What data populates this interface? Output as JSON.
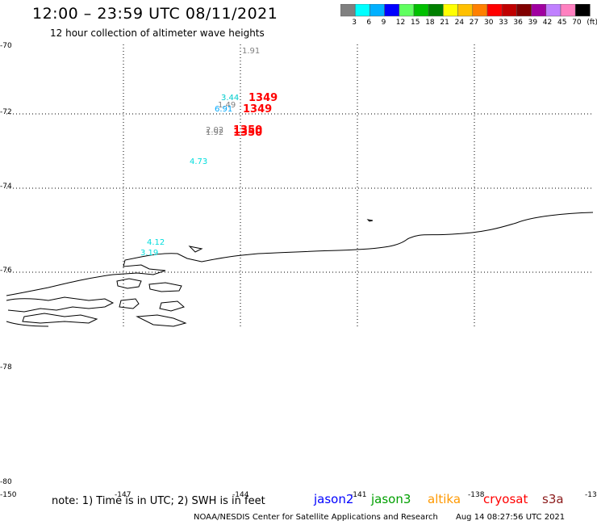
{
  "header": {
    "title": "12:00 – 23:59 UTC 08/11/2021",
    "subtitle": "12 hour collection of altimeter wave heights"
  },
  "colorbar": {
    "colors": [
      "#808080",
      "#00ffff",
      "#00b0ff",
      "#0000ff",
      "#60ff60",
      "#00c000",
      "#008000",
      "#ffff00",
      "#ffc000",
      "#ff8000",
      "#ff0000",
      "#c00000",
      "#800000",
      "#a000a0",
      "#c080ff",
      "#ff80c0",
      "#000000"
    ],
    "labels": [
      "3",
      "6",
      "9",
      "12",
      "15",
      "18",
      "21",
      "24",
      "27",
      "30",
      "33",
      "36",
      "39",
      "42",
      "45",
      "70",
      "(ft)"
    ]
  },
  "axes": {
    "lat_labels": [
      "-70",
      "-72",
      "-74",
      "-76",
      "-78",
      "-80"
    ],
    "lon_labels": [
      "-150",
      "-147",
      "-144",
      "-141",
      "-138",
      "-13"
    ]
  },
  "observations": [
    {
      "text": "1.91",
      "color": "#808080"
    },
    {
      "text": "3.44",
      "color": "#00cccc"
    },
    {
      "text": "1.49",
      "color": "#808080"
    },
    {
      "text": "6.91",
      "color": "#00aaff"
    },
    {
      "text": "2.02",
      "color": "#808080"
    },
    {
      "text": "1.92",
      "color": "#808080"
    },
    {
      "text": "4.73",
      "color": "#00dddd"
    },
    {
      "text": "4.12",
      "color": "#00dddd"
    },
    {
      "text": "3.19",
      "color": "#00dddd"
    }
  ],
  "orbits": [
    "1349",
    "1349",
    "1350",
    "1350"
  ],
  "footer": {
    "note": "note: 1) Time is in UTC; 2) SWH is in feet",
    "satellites": [
      {
        "name": "jason2",
        "color": "#0000ff"
      },
      {
        "name": "jason3",
        "color": "#00a000"
      },
      {
        "name": "altika",
        "color": "#ff9900"
      },
      {
        "name": "cryosat",
        "color": "#ff0000"
      },
      {
        "name": "s3a",
        "color": "#8b1a1a"
      }
    ],
    "credit": "NOAA/NESDIS Center for Satellite Applications and Research",
    "timestamp": "Aug 14 08:27:56 UTC 2021"
  }
}
